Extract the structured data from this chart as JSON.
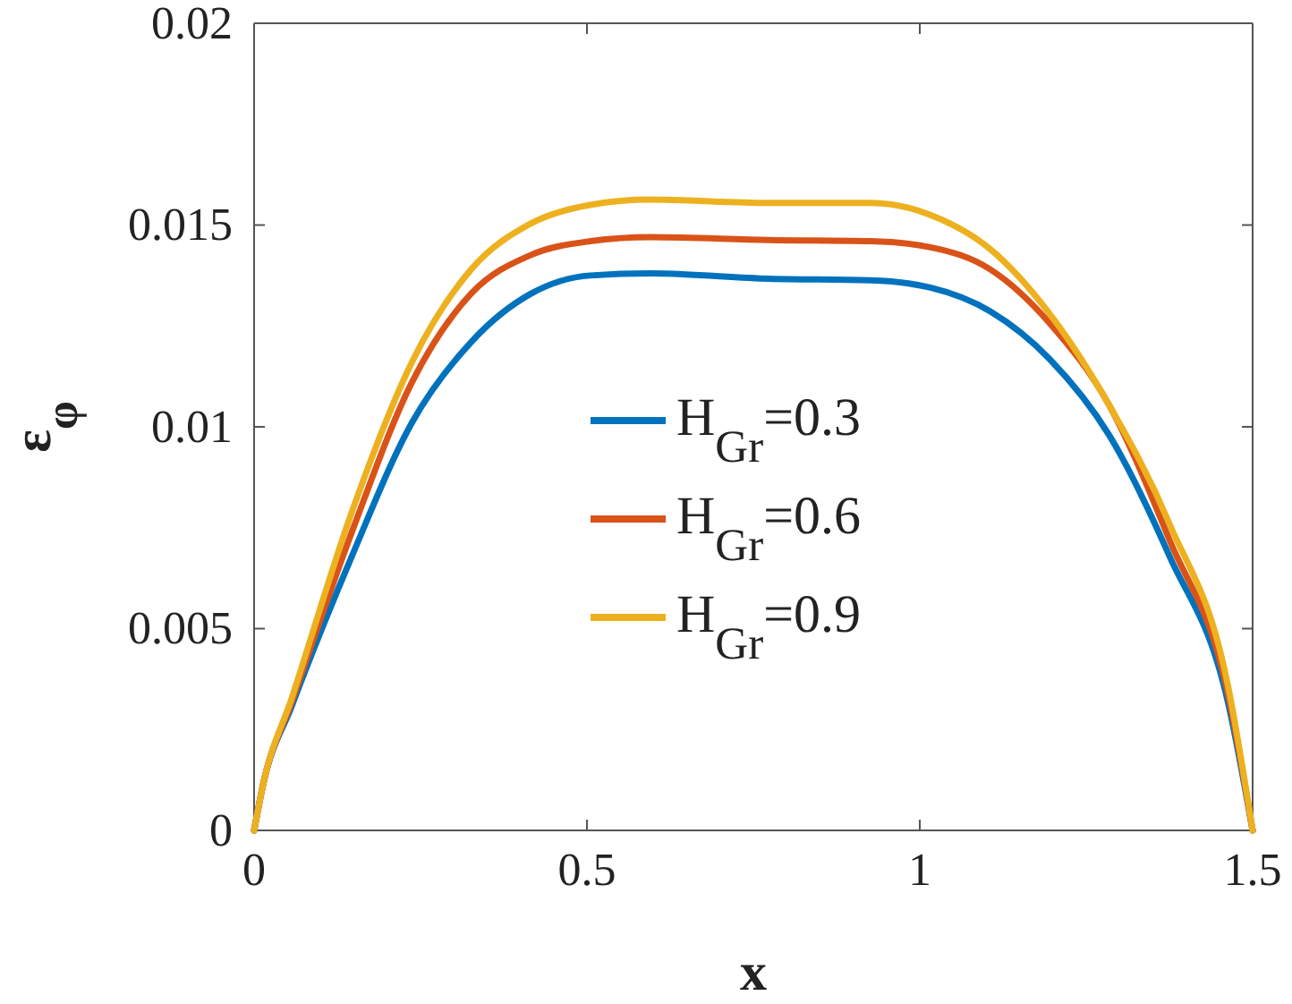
{
  "chart_data": {
    "type": "line",
    "xlabel": "x",
    "ylabel": "ε$_{φ}$",
    "xlim": [
      0,
      1.5
    ],
    "xticks": [
      0,
      0.5,
      1,
      1.5
    ],
    "ylim": [
      0,
      0.02
    ],
    "yticks": [
      0,
      0.005,
      0.01,
      0.015,
      0.02
    ],
    "grid": false,
    "legend": "center",
    "line_style": "solid",
    "series": [
      {
        "name": "H$_{Gr}$=0.3",
        "color": "#0072bd",
        "x": [
          0,
          0.013,
          0.057,
          0.147,
          0.237,
          0.326,
          0.416,
          0.505,
          0.595,
          0.774,
          0.926,
          1.016,
          1.106,
          1.195,
          1.285,
          1.375,
          1.464,
          1.5
        ],
        "values": [
          0,
          0.0011,
          0.0031,
          0.0068,
          0.0101,
          0.0121,
          0.0133,
          0.01375,
          0.0138,
          0.01367,
          0.01363,
          0.01345,
          0.01286,
          0.01168,
          0.00978,
          0.0068,
          0.0031,
          0
        ]
      },
      {
        "name": "H$_{Gr}$=0.6",
        "color": "#d95319",
        "x": [
          0,
          0.013,
          0.057,
          0.147,
          0.237,
          0.326,
          0.416,
          0.505,
          0.595,
          0.774,
          0.926,
          1.016,
          1.106,
          1.195,
          1.285,
          1.375,
          1.464,
          1.5
        ],
        "values": [
          0,
          0.0011,
          0.0032,
          0.0074,
          0.0111,
          0.0133,
          0.01426,
          0.0146,
          0.0147,
          0.01463,
          0.0146,
          0.01445,
          0.0139,
          0.01257,
          0.01052,
          0.0072,
          0.0033,
          0
        ]
      },
      {
        "name": "H$_{Gr}$=0.9",
        "color": "#edb120",
        "x": [
          0,
          0.013,
          0.057,
          0.147,
          0.237,
          0.326,
          0.416,
          0.505,
          0.595,
          0.774,
          0.926,
          1.016,
          1.106,
          1.195,
          1.285,
          1.375,
          1.464,
          1.5
        ],
        "values": [
          0,
          0.0011,
          0.0033,
          0.0079,
          0.0116,
          0.0139,
          0.01504,
          0.0155,
          0.01563,
          0.01555,
          0.01555,
          0.01525,
          0.0144,
          0.0128,
          0.01052,
          0.0076,
          0.0035,
          0
        ]
      }
    ]
  }
}
